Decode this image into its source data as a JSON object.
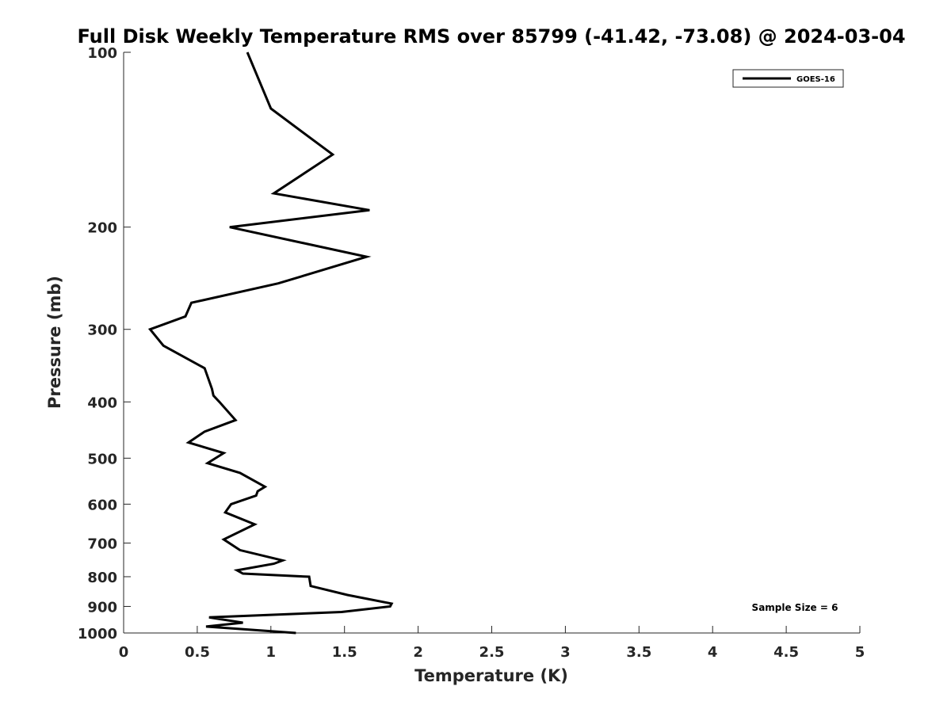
{
  "chart_data": {
    "type": "line",
    "title": "Full Disk Weekly Temperature RMS over 85799 (-41.42, -73.08) @ 2024-03-04",
    "xlabel": "Temperature (K)",
    "ylabel": "Pressure (mb)",
    "xlim": [
      0,
      5
    ],
    "ylim": [
      1000,
      100
    ],
    "y_scale": "log",
    "y_reversed": true,
    "grid": false,
    "legend_position": "top-right",
    "x_ticks": [
      "0",
      "0.5",
      "1",
      "1.5",
      "2",
      "2.5",
      "3",
      "3.5",
      "4",
      "4.5",
      "5"
    ],
    "x_tick_values": [
      0,
      0.5,
      1,
      1.5,
      2,
      2.5,
      3,
      3.5,
      4,
      4.5,
      5
    ],
    "y_ticks": [
      "100",
      "200",
      "300",
      "400",
      "500",
      "600",
      "700",
      "800",
      "900",
      "1000"
    ],
    "y_tick_values": [
      100,
      200,
      300,
      400,
      500,
      600,
      700,
      800,
      900,
      1000
    ],
    "annotation": "Sample Size = 6",
    "series": [
      {
        "name": "GOES-16",
        "color": "#000000",
        "points": [
          [
            0.84,
            100
          ],
          [
            1.0,
            125
          ],
          [
            1.42,
            150
          ],
          [
            1.02,
            175
          ],
          [
            1.67,
            187
          ],
          [
            0.72,
            200
          ],
          [
            1.65,
            225
          ],
          [
            1.05,
            250
          ],
          [
            0.46,
            270
          ],
          [
            0.42,
            285
          ],
          [
            0.18,
            300
          ],
          [
            0.27,
            320
          ],
          [
            0.55,
            350
          ],
          [
            0.6,
            380
          ],
          [
            0.61,
            390
          ],
          [
            0.65,
            400
          ],
          [
            0.76,
            430
          ],
          [
            0.55,
            450
          ],
          [
            0.44,
            470
          ],
          [
            0.68,
            490
          ],
          [
            0.57,
            510
          ],
          [
            0.79,
            530
          ],
          [
            0.96,
            560
          ],
          [
            0.91,
            570
          ],
          [
            0.9,
            580
          ],
          [
            0.73,
            600
          ],
          [
            0.69,
            620
          ],
          [
            0.89,
            650
          ],
          [
            0.68,
            690
          ],
          [
            0.79,
            720
          ],
          [
            1.08,
            750
          ],
          [
            1.02,
            760
          ],
          [
            0.77,
            780
          ],
          [
            0.81,
            790
          ],
          [
            1.26,
            800
          ],
          [
            1.27,
            830
          ],
          [
            1.52,
            860
          ],
          [
            1.82,
            890
          ],
          [
            1.81,
            900
          ],
          [
            1.48,
            920
          ],
          [
            0.58,
            940
          ],
          [
            0.81,
            960
          ],
          [
            0.56,
            975
          ],
          [
            1.17,
            1000
          ]
        ]
      }
    ]
  }
}
